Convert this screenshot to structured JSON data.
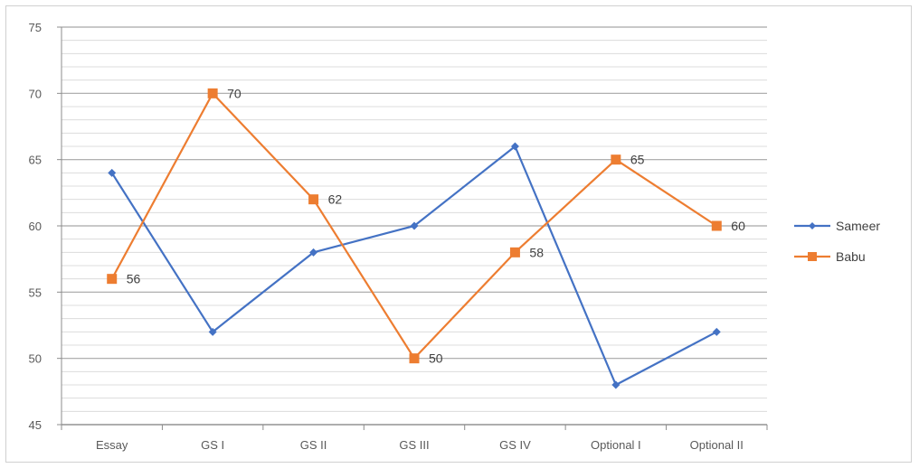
{
  "chart_data": {
    "type": "line",
    "categories": [
      "Essay",
      "GS I",
      "GS II",
      "GS III",
      "GS IV",
      "Optional I",
      "Optional II"
    ],
    "series": [
      {
        "name": "Sameer",
        "values": [
          64,
          52,
          58,
          60,
          66,
          48,
          52
        ],
        "color": "#4472c4",
        "marker": "diamond",
        "data_labels": false
      },
      {
        "name": "Babu",
        "values": [
          56,
          70,
          62,
          50,
          58,
          65,
          60
        ],
        "color": "#ed7d31",
        "marker": "square",
        "data_labels": true
      }
    ],
    "ylim": [
      45,
      75
    ],
    "yticks": [
      45,
      50,
      55,
      60,
      65,
      70,
      75
    ],
    "minor_grid_step": 1,
    "grid": true,
    "legend_position": "right",
    "title": "",
    "xlabel": "",
    "ylabel": ""
  }
}
